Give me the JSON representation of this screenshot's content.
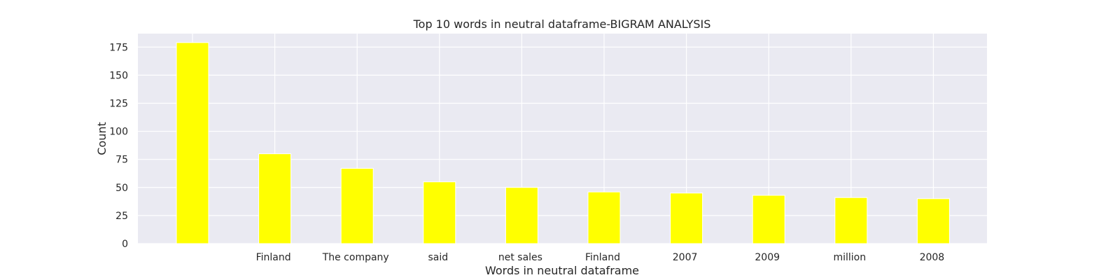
{
  "chart_data": {
    "type": "bar",
    "title": "Top 10 words in neutral dataframe-BIGRAM ANALYSIS",
    "xlabel": "Words in neutral dataframe",
    "ylabel": "Count",
    "categories": [
      "",
      "Finland",
      "The company",
      "said",
      "net sales",
      "Finland",
      "2007",
      "2009",
      "million",
      "2008"
    ],
    "values": [
      179,
      80,
      67,
      55,
      50,
      46,
      45,
      43,
      41,
      40
    ],
    "ylim": [
      0,
      187
    ],
    "yticks": [
      "0",
      "25",
      "50",
      "75",
      "100",
      "125",
      "150",
      "175"
    ],
    "grid": true,
    "legend": "none",
    "colors": {
      "bar": "#ffff00",
      "plot_background": "#eaeaf2",
      "grid": "#ffffff",
      "text": "#262626"
    }
  }
}
